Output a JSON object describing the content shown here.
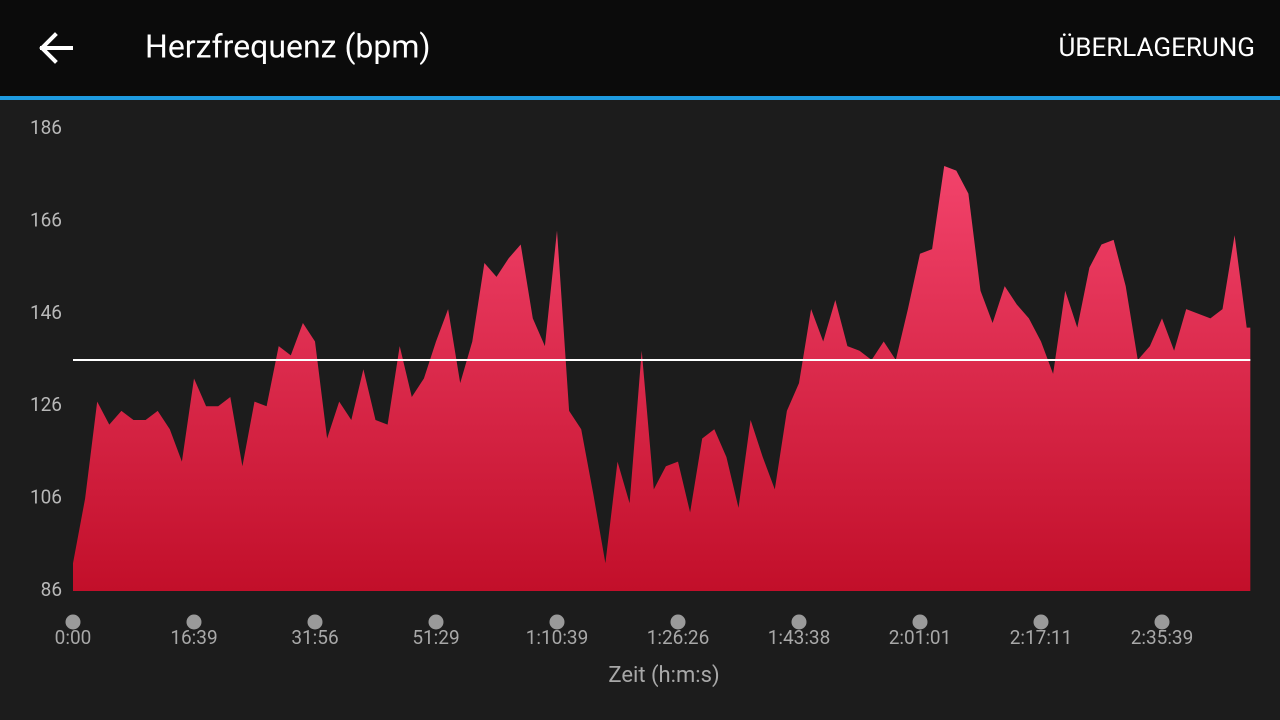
{
  "header": {
    "title": "Herzfrequenz (bpm)",
    "action": "ÜBERLAGERUNG"
  },
  "chart_data": {
    "type": "area",
    "x": [
      0,
      0.1,
      0.2,
      0.3,
      0.4,
      0.5,
      0.6,
      0.7,
      0.8,
      0.9,
      1,
      1.1,
      1.2,
      1.3,
      1.4,
      1.5,
      1.6,
      1.7,
      1.8,
      1.9,
      2,
      2.1,
      2.2,
      2.3,
      2.4,
      2.5,
      2.6,
      2.7,
      2.8,
      2.9,
      3,
      3.1,
      3.2,
      3.3,
      3.4,
      3.5,
      3.6,
      3.7,
      3.8,
      3.9,
      4,
      4.1,
      4.2,
      4.3,
      4.4,
      4.5,
      4.6,
      4.7,
      4.8,
      4.9,
      5,
      5.1,
      5.2,
      5.3,
      5.4,
      5.5,
      5.6,
      5.7,
      5.8,
      5.9,
      6,
      6.1,
      6.2,
      6.3,
      6.4,
      6.5,
      6.6,
      6.7,
      6.8,
      6.9,
      7,
      7.1,
      7.2,
      7.3,
      7.4,
      7.5,
      7.6,
      7.7,
      7.8,
      7.9,
      8,
      8.1,
      8.2,
      8.3,
      8.4,
      8.5,
      8.6,
      8.7,
      8.8,
      8.9,
      9,
      9.1,
      9.2,
      9.3,
      9.4,
      9.5,
      9.6,
      9.7
    ],
    "values": [
      92,
      106,
      127,
      122,
      125,
      123,
      123,
      125,
      121,
      114,
      132,
      126,
      126,
      128,
      113,
      127,
      126,
      139,
      137,
      144,
      140,
      119,
      127,
      123,
      134,
      123,
      122,
      139,
      128,
      132,
      140,
      147,
      131,
      140,
      157,
      154,
      158,
      161,
      145,
      139,
      164,
      125,
      121,
      107,
      92,
      114,
      105,
      138,
      108,
      113,
      114,
      103,
      119,
      121,
      115,
      104,
      123,
      115,
      108,
      125,
      131,
      147,
      140,
      149,
      139,
      138,
      136,
      140,
      136,
      147,
      159,
      160,
      178,
      177,
      172,
      151,
      144,
      152,
      148,
      145,
      140,
      133,
      151,
      143,
      156,
      161,
      162,
      152,
      136,
      139,
      145,
      138,
      147,
      146,
      145,
      147,
      163,
      143
    ],
    "xlim": [
      0,
      9.73
    ],
    "xticks": [
      {
        "value": 0,
        "label": "0:00"
      },
      {
        "value": 1,
        "label": "16:39"
      },
      {
        "value": 2,
        "label": "31:56"
      },
      {
        "value": 3,
        "label": "51:29"
      },
      {
        "value": 4,
        "label": "1:10:39"
      },
      {
        "value": 5,
        "label": "1:26:26"
      },
      {
        "value": 6,
        "label": "1:43:38"
      },
      {
        "value": 7,
        "label": "2:01:01"
      },
      {
        "value": 8,
        "label": "2:17:11"
      },
      {
        "value": 9,
        "label": "2:35:39"
      }
    ],
    "ylim": [
      86,
      186
    ],
    "yticks": [
      86,
      106,
      126,
      146,
      166,
      186
    ],
    "xlabel": "Zeit (h:m:s)",
    "average": 136,
    "color_top": "#f2436b",
    "color_bottom": "#c20f2a",
    "average_color": "#ffffff"
  }
}
